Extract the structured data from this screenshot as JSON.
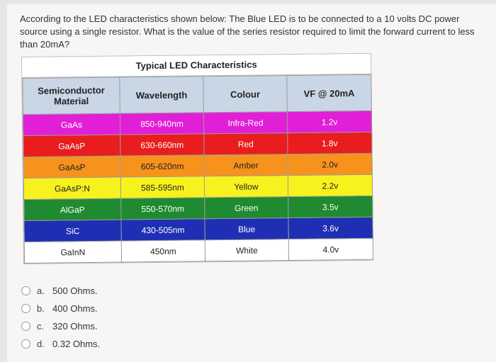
{
  "question": "According to the LED characteristics shown below: The Blue LED is to be connected to a 10 volts DC power source using a single resistor. What is the value of the series resistor required to limit the forward current to less than 20mA?",
  "table": {
    "title": "Typical LED Characteristics",
    "headers": [
      "Semiconductor Material",
      "Wavelength",
      "Colour",
      "VF @ 20mA"
    ],
    "rows": [
      {
        "material": "GaAs",
        "wavelength": "850-940nm",
        "colour": "Infra-Red",
        "vf": "1.2v",
        "bg": "#e11fd6",
        "fg": "#ffffff"
      },
      {
        "material": "GaAsP",
        "wavelength": "630-660nm",
        "colour": "Red",
        "vf": "1.8v",
        "bg": "#e91d1d",
        "fg": "#ffffff"
      },
      {
        "material": "GaAsP",
        "wavelength": "605-620nm",
        "colour": "Amber",
        "vf": "2.0v",
        "bg": "#f7931d",
        "fg": "#222222"
      },
      {
        "material": "GaAsP:N",
        "wavelength": "585-595nm",
        "colour": "Yellow",
        "vf": "2.2v",
        "bg": "#f7f21e",
        "fg": "#222222"
      },
      {
        "material": "AlGaP",
        "wavelength": "550-570nm",
        "colour": "Green",
        "vf": "3.5v",
        "bg": "#1f8a2f",
        "fg": "#ffffff"
      },
      {
        "material": "SiC",
        "wavelength": "430-505nm",
        "colour": "Blue",
        "vf": "3.6v",
        "bg": "#1f2fb4",
        "fg": "#ffffff"
      },
      {
        "material": "GaInN",
        "wavelength": "450nm",
        "colour": "White",
        "vf": "4.0v",
        "bg": "#ffffff",
        "fg": "#222222"
      }
    ]
  },
  "options": [
    {
      "letter": "a.",
      "text": "500 Ohms."
    },
    {
      "letter": "b.",
      "text": "400 Ohms."
    },
    {
      "letter": "c.",
      "text": "320 Ohms."
    },
    {
      "letter": "d.",
      "text": "0.32 Ohms."
    }
  ]
}
